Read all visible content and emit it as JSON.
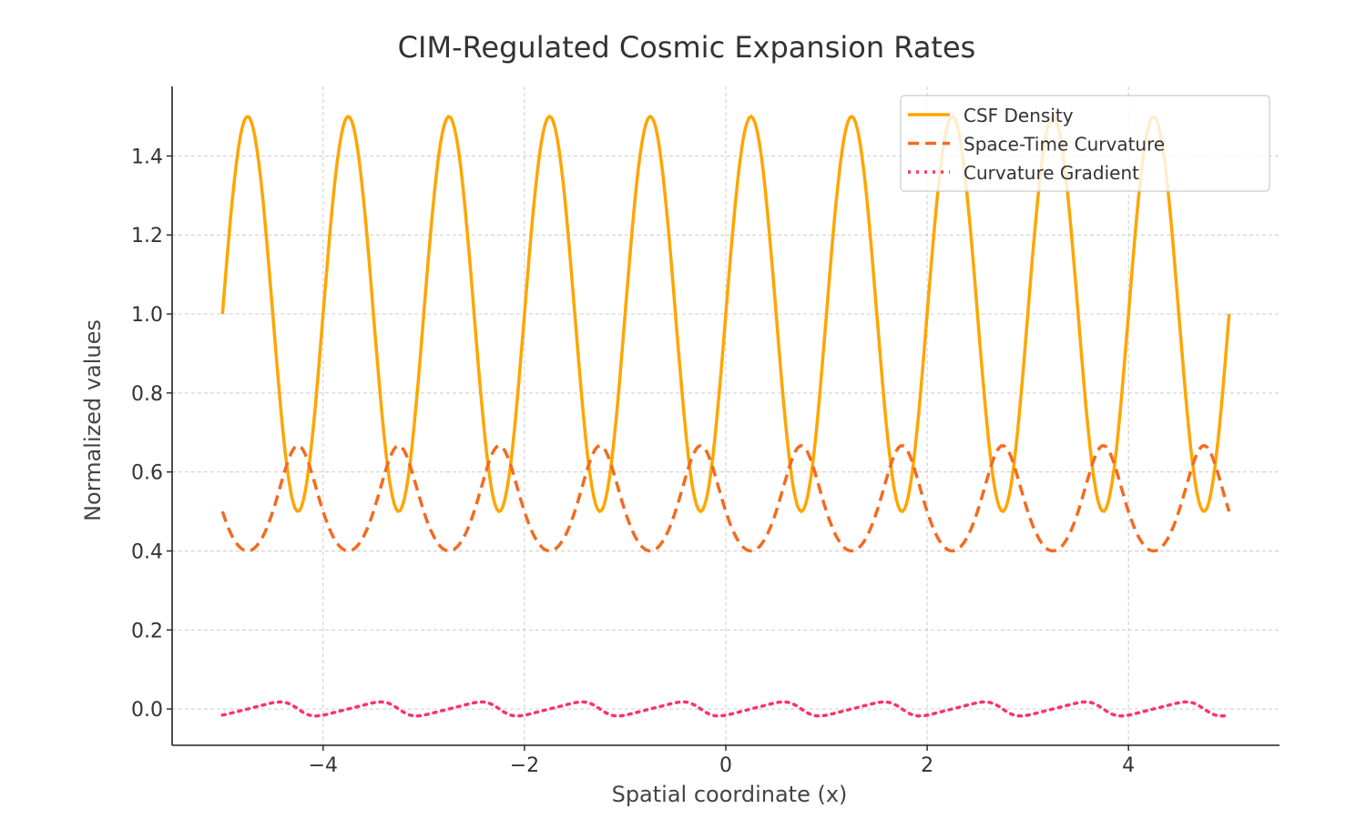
{
  "chart_data": {
    "type": "line",
    "title": "CIM-Regulated Cosmic Expansion Rates",
    "xlabel": "Spatial coordinate  (x)",
    "ylabel": "Normalized values",
    "xlim": [
      -5.5,
      5.5
    ],
    "ylim": [
      -0.092,
      1.576
    ],
    "x_range": [
      -5,
      5
    ],
    "num_points": 500,
    "xticks": [
      -4,
      -2,
      0,
      2,
      4
    ],
    "xtick_labels": [
      "−4",
      "−2",
      "0",
      "2",
      "4"
    ],
    "yticks": [
      0.0,
      0.2,
      0.4,
      0.6,
      0.8,
      1.0,
      1.2,
      1.4
    ],
    "ytick_labels": [
      "0.0",
      "0.2",
      "0.4",
      "0.6",
      "0.8",
      "1.0",
      "1.2",
      "1.4"
    ],
    "grid": true,
    "legend_position": "top-right",
    "series": [
      {
        "name": "CSF Density",
        "color": "#FFA500",
        "style": "solid",
        "formula": "1 + 0.5*sin(2*pi*x)",
        "min": 0.5,
        "max": 1.5
      },
      {
        "name": "Space-Time Curvature",
        "color": "#F26B21",
        "style": "dashed",
        "formula": "1/(1 + CSF Density)",
        "min": 0.4,
        "max": 0.667
      },
      {
        "name": "Curvature Gradient",
        "color": "#FF3366",
        "style": "dotted",
        "formula": "gradient(Space-Time Curvature) per sample",
        "min": -0.018,
        "max": 0.018
      }
    ]
  }
}
